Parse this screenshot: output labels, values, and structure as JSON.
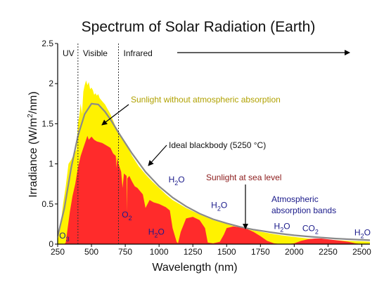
{
  "chart_data": {
    "type": "area",
    "title": "Spectrum of Solar Radiation (Earth)",
    "xlabel": "Wavelength (nm)",
    "ylabel_parts": [
      "Irradiance (W/m",
      "2",
      "/nm)"
    ],
    "xlim": [
      250,
      2560
    ],
    "ylim": [
      0,
      2.5
    ],
    "xticks": [
      250,
      500,
      750,
      1000,
      1250,
      1500,
      1750,
      2000,
      2250,
      2500
    ],
    "yticks": [
      0,
      0.5,
      1,
      1.5,
      2,
      2.5
    ],
    "ytick_labels": [
      "0",
      "0.5",
      "1",
      "1.5",
      "2",
      "2.5"
    ],
    "grid": false,
    "regions": [
      {
        "label": "UV",
        "from": 250,
        "to": 400
      },
      {
        "label": "Visible",
        "from": 400,
        "to": 700
      },
      {
        "label": "Infrared",
        "from": 700,
        "to": 2560
      }
    ],
    "boundaries": [
      400,
      700
    ],
    "series": [
      {
        "name": "Sunlight without atmospheric absorption",
        "color": "#fff200",
        "x": [
          250,
          270,
          290,
          310,
          330,
          350,
          370,
          390,
          400,
          410,
          420,
          430,
          440,
          450,
          460,
          470,
          480,
          490,
          500,
          510,
          520,
          530,
          540,
          550,
          560,
          570,
          580,
          600,
          620,
          640,
          660,
          680,
          700,
          720,
          750,
          800,
          850,
          900,
          950,
          1000,
          1050,
          1100,
          1200,
          1300,
          1400,
          1500,
          1600,
          1700,
          1800,
          1900,
          2000,
          2100,
          2200,
          2300,
          2400,
          2500,
          2560
        ],
        "values": [
          0.05,
          0.2,
          0.5,
          0.72,
          1.0,
          1.05,
          1.12,
          1.18,
          1.5,
          1.6,
          1.75,
          1.62,
          1.9,
          1.98,
          2.04,
          1.98,
          2.02,
          1.93,
          1.95,
          1.92,
          1.86,
          1.88,
          1.85,
          1.87,
          1.82,
          1.8,
          1.78,
          1.74,
          1.68,
          1.62,
          1.54,
          1.46,
          1.4,
          1.34,
          1.27,
          1.1,
          0.97,
          0.87,
          0.78,
          0.7,
          0.62,
          0.55,
          0.45,
          0.37,
          0.3,
          0.25,
          0.2,
          0.17,
          0.14,
          0.11,
          0.09,
          0.07,
          0.06,
          0.05,
          0.04,
          0.035,
          0.03
        ]
      },
      {
        "name": "Sunlight at sea level",
        "color": "#ff2b2b",
        "x": [
          250,
          300,
          310,
          320,
          340,
          360,
          380,
          400,
          420,
          440,
          460,
          470,
          480,
          500,
          520,
          540,
          560,
          580,
          600,
          620,
          640,
          660,
          680,
          686,
          690,
          700,
          720,
          730,
          740,
          760,
          762,
          765,
          780,
          800,
          820,
          840,
          880,
          900,
          930,
          960,
          1000,
          1050,
          1080,
          1100,
          1130,
          1140,
          1160,
          1200,
          1250,
          1300,
          1340,
          1360,
          1400,
          1450,
          1480,
          1500,
          1550,
          1600,
          1650,
          1700,
          1750,
          1800,
          1850,
          1900,
          1950,
          2000,
          2050,
          2100,
          2150,
          2200,
          2250,
          2300,
          2350,
          2400,
          2450,
          2500,
          2550
        ],
        "values": [
          0,
          0,
          0.02,
          0.15,
          0.4,
          0.6,
          0.75,
          0.95,
          1.1,
          1.2,
          1.3,
          1.35,
          1.3,
          1.34,
          1.3,
          1.28,
          1.27,
          1.26,
          1.24,
          1.22,
          1.2,
          1.13,
          1.1,
          0.95,
          1.08,
          1.0,
          0.9,
          0.7,
          0.88,
          0.85,
          0.4,
          0.82,
          0.85,
          0.78,
          0.72,
          0.7,
          0.62,
          0.45,
          0.55,
          0.52,
          0.5,
          0.46,
          0.42,
          0.2,
          0.03,
          0.01,
          0.15,
          0.32,
          0.34,
          0.3,
          0.2,
          0.02,
          0.01,
          0.03,
          0.12,
          0.2,
          0.22,
          0.21,
          0.19,
          0.15,
          0.1,
          0.04,
          0.01,
          0.0,
          0.0,
          0.01,
          0.04,
          0.06,
          0.07,
          0.07,
          0.06,
          0.05,
          0.04,
          0.03,
          0.01,
          0.0,
          0.0
        ]
      },
      {
        "name": "Ideal blackbody (5250 °C)",
        "color": "#8a8a8a",
        "x": [
          250,
          300,
          350,
          400,
          450,
          500,
          550,
          600,
          650,
          700,
          750,
          800,
          900,
          1000,
          1100,
          1200,
          1300,
          1400,
          1500,
          1600,
          1700,
          1800,
          1900,
          2000,
          2100,
          2200,
          2300,
          2400,
          2500,
          2560
        ],
        "values": [
          0.1,
          0.45,
          0.95,
          1.35,
          1.62,
          1.75,
          1.74,
          1.65,
          1.53,
          1.39,
          1.26,
          1.13,
          0.9,
          0.72,
          0.58,
          0.47,
          0.38,
          0.31,
          0.26,
          0.215,
          0.18,
          0.155,
          0.13,
          0.11,
          0.095,
          0.082,
          0.07,
          0.061,
          0.053,
          0.049
        ]
      }
    ],
    "annotations": {
      "no_atm": "Sunlight without atmospheric absorption",
      "blackbody": "Ideal blackbody (5250 °C)",
      "sea_level": "Sunlight at sea level",
      "bands": [
        "Atmospheric",
        "absorption bands"
      ],
      "molecules": [
        {
          "id": "o3",
          "sym": "O",
          "sub": "3",
          "x": 262,
          "y": 0.07
        },
        {
          "id": "o2",
          "sym": "O",
          "sub": "2",
          "x": 725,
          "y": 0.33
        },
        {
          "id": "h2o-a",
          "sym": "H",
          "sub": "2",
          "tail": "O",
          "x": 920,
          "y": 0.12
        },
        {
          "id": "h2o-b",
          "sym": "H",
          "sub": "2",
          "tail": "O",
          "x": 1070,
          "y": 0.77
        },
        {
          "id": "h2o-c",
          "sym": "H",
          "sub": "2",
          "tail": "O",
          "x": 1385,
          "y": 0.45
        },
        {
          "id": "h2o-d",
          "sym": "H",
          "sub": "2",
          "tail": "O",
          "x": 1850,
          "y": 0.19
        },
        {
          "id": "co2",
          "sym": "CO",
          "sub": "2",
          "x": 2060,
          "y": 0.16
        },
        {
          "id": "h2o-e",
          "sym": "H",
          "sub": "2",
          "tail": "O",
          "x": 2445,
          "y": 0.11
        }
      ]
    }
  }
}
